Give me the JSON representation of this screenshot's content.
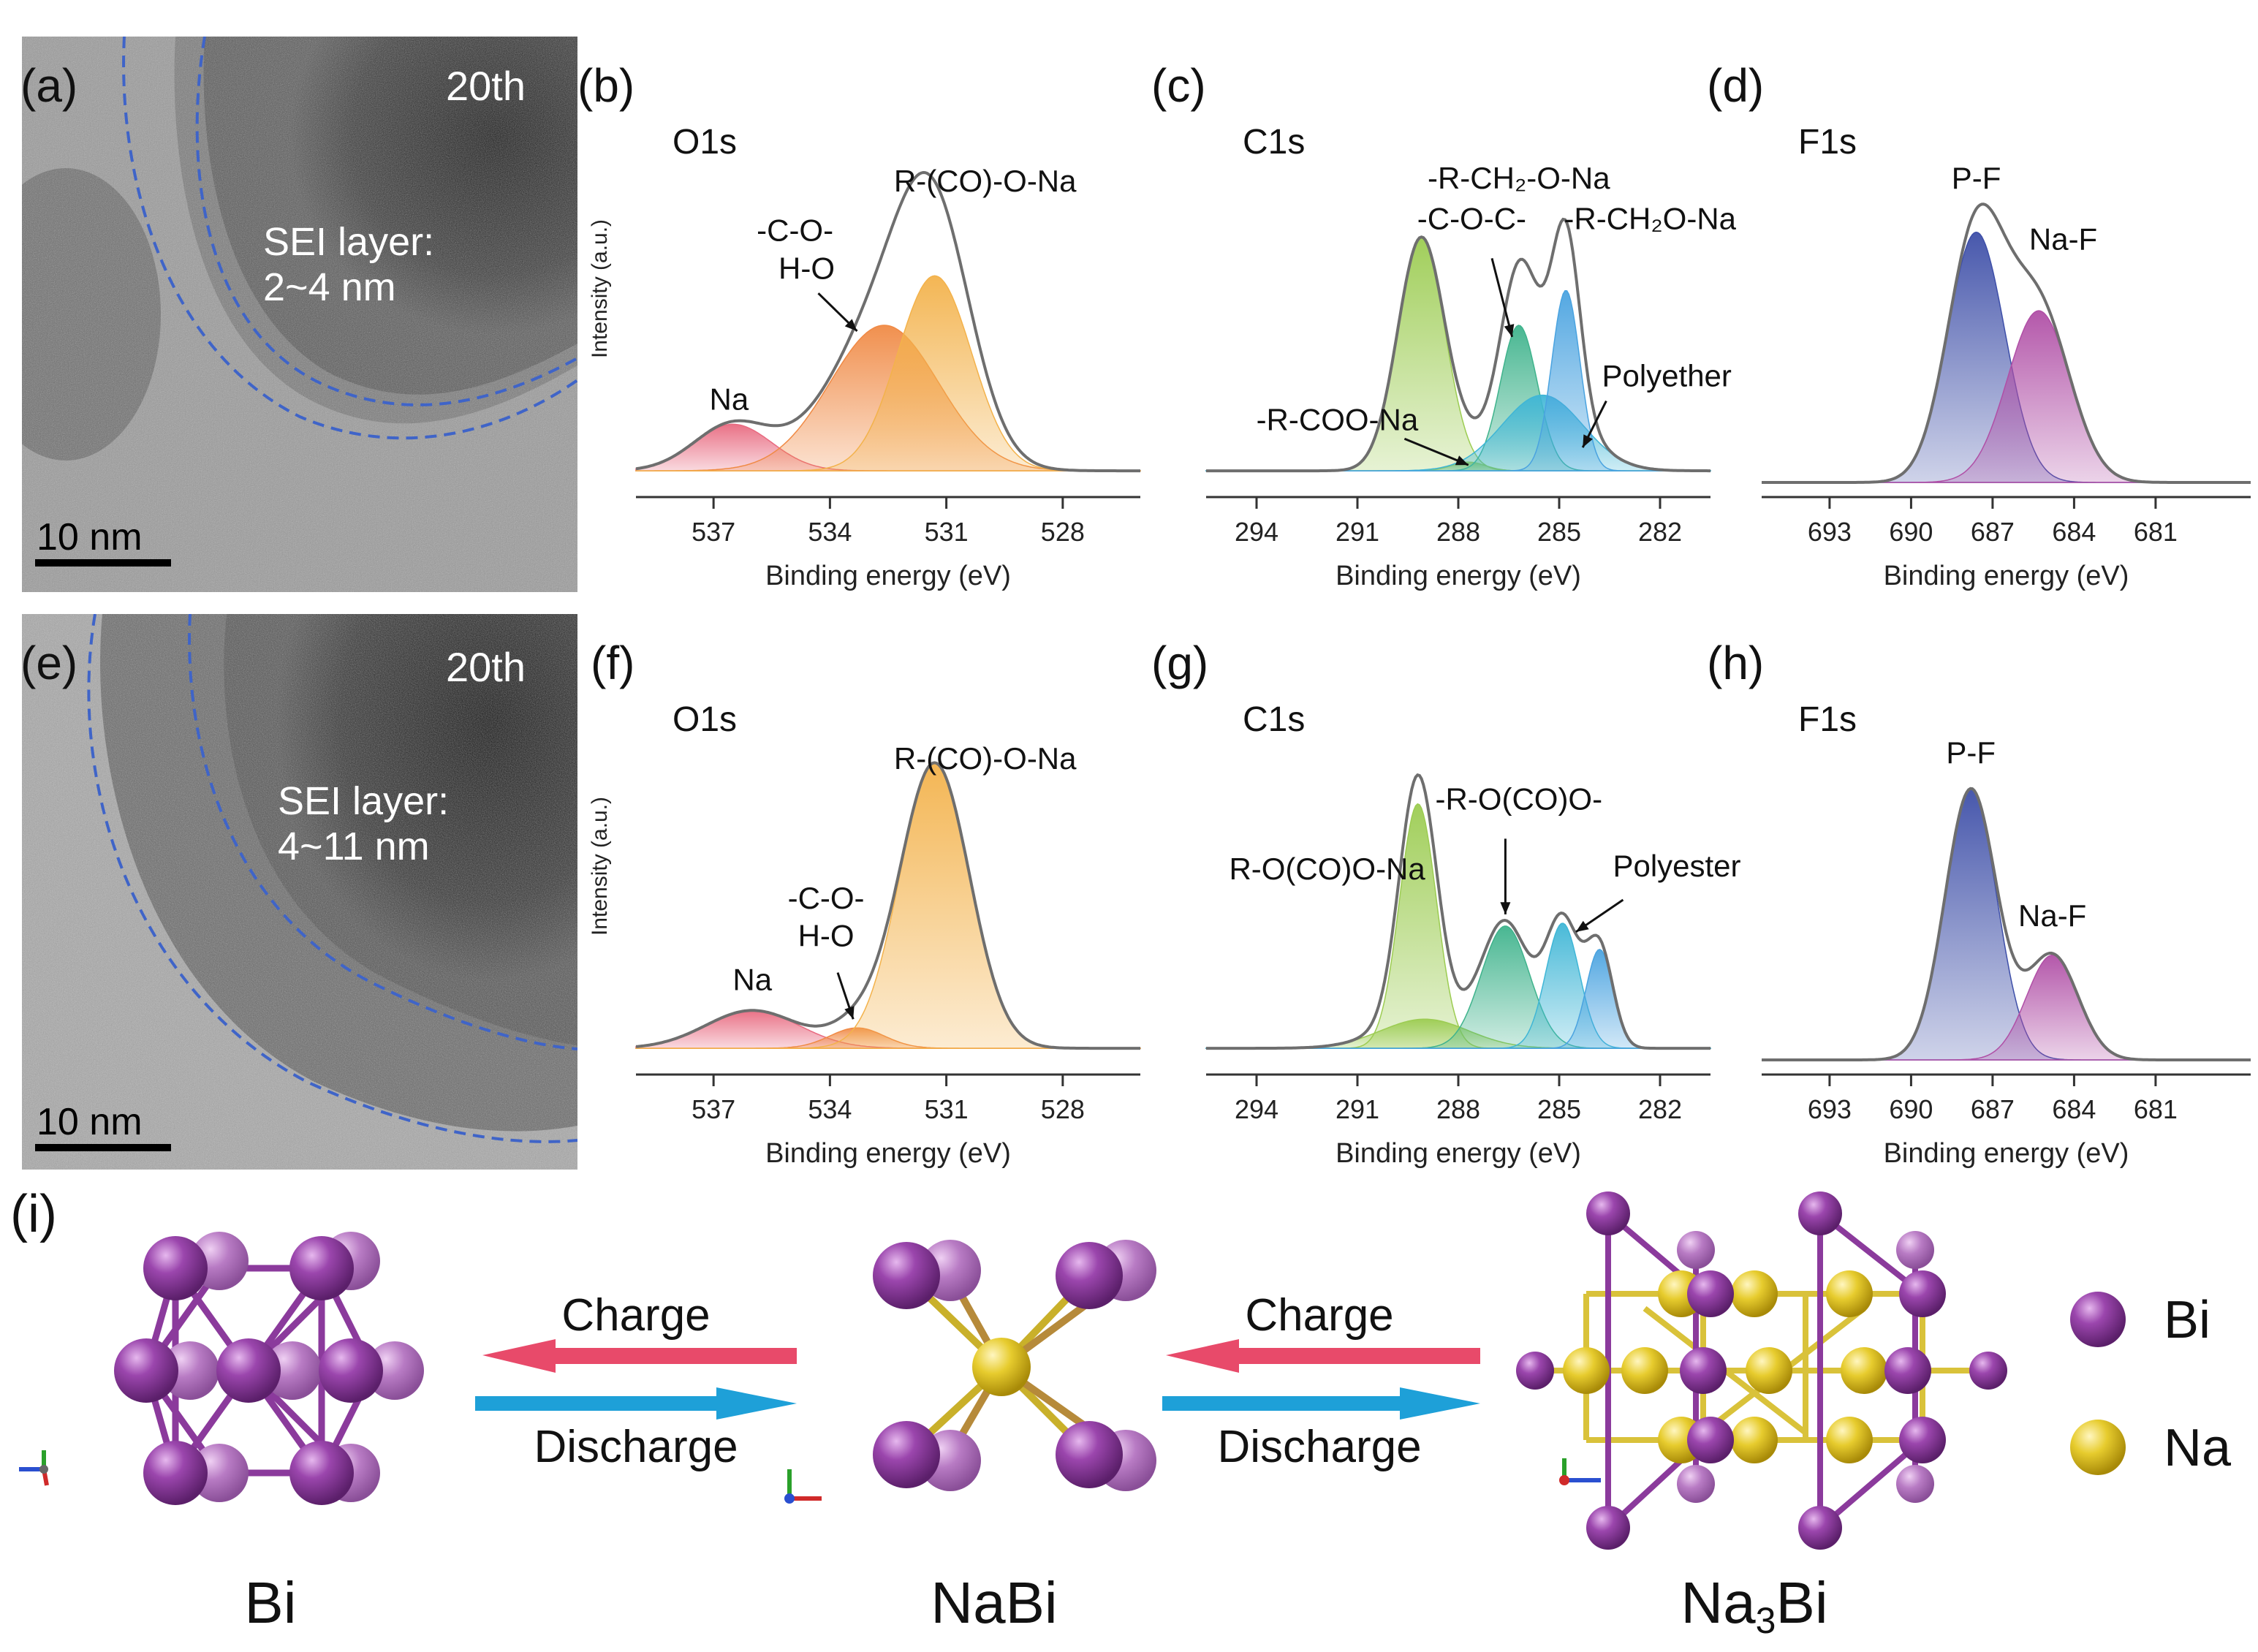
{
  "labels": {
    "a": "(a)",
    "b": "(b)",
    "c": "(c)",
    "d": "(d)",
    "e": "(e)",
    "f": "(f)",
    "g": "(g)",
    "h": "(h)",
    "i": "(i)"
  },
  "tem": [
    {
      "id": "a",
      "cycle": "20th",
      "sei_line1": "SEI layer:",
      "sei_line2": "2~4 nm",
      "scale": "10 nm"
    },
    {
      "id": "e",
      "cycle": "20th",
      "sei_line1": "SEI layer:",
      "sei_line2": "4~11 nm",
      "scale": "10 nm"
    }
  ],
  "colors": {
    "envelope": "#6e6e6e",
    "raw": "#b8b8b8",
    "red": "#e86a80",
    "orange": "#f08a45",
    "yellow": "#f3b24b",
    "lightgreen": "#9ccc52",
    "teal": "#3fb38c",
    "cyan": "#3fb6d6",
    "blue": "#4aa3e0",
    "navy": "#3e4fa8",
    "purple": "#b04fa6",
    "arrow_red": "#e84a6a",
    "arrow_blue": "#1ea0d8",
    "bi_atom": "#8b3a9c",
    "na_atom": "#e6c82a"
  },
  "chart_data": [
    {
      "id": "b",
      "type": "area",
      "title": "O1s",
      "ylabel": "Intensity (a.u.)",
      "xlabel": "Binding energy (eV)",
      "xlim": [
        539,
        526
      ],
      "ylim": [
        0,
        1.08
      ],
      "xticks": [
        537,
        534,
        531,
        528
      ],
      "baseline": 0.04,
      "series": [
        {
          "color_key": "red",
          "center": 536.5,
          "amp": 0.16,
          "sigma": 1.0
        },
        {
          "color_key": "orange",
          "center": 532.6,
          "amp": 0.5,
          "sigma": 1.4
        },
        {
          "color_key": "yellow",
          "center": 531.3,
          "amp": 0.67,
          "sigma": 0.95
        }
      ],
      "annotations": [
        {
          "text": "Na",
          "x": 536.6,
          "y": 0.25
        },
        {
          "text": "-C-O-",
          "x": 534.9,
          "y": 0.83
        },
        {
          "text": "H-O",
          "x": 534.6,
          "y": 0.7
        },
        {
          "text": "R-(CO)-O-Na",
          "x": 530.0,
          "y": 1.0
        }
      ],
      "arrows": [
        {
          "from": [
            534.3,
            0.65
          ],
          "to": [
            533.3,
            0.52
          ]
        }
      ]
    },
    {
      "id": "c",
      "type": "area",
      "title": "C1s",
      "ylabel": "",
      "xlabel": "Binding energy (eV)",
      "xlim": [
        295.5,
        280.5
      ],
      "ylim": [
        0,
        1.08
      ],
      "xticks": [
        294,
        291,
        288,
        285,
        282
      ],
      "baseline": 0.04,
      "series": [
        {
          "color_key": "lightgreen",
          "center": 289.1,
          "amp": 0.8,
          "sigma": 0.7
        },
        {
          "color_key": "lightgreen",
          "center": 287.7,
          "amp": 0.03,
          "sigma": 0.5
        },
        {
          "color_key": "teal",
          "center": 286.2,
          "amp": 0.5,
          "sigma": 0.55
        },
        {
          "color_key": "cyan",
          "center": 285.5,
          "amp": 0.26,
          "sigma": 1.2
        },
        {
          "color_key": "blue",
          "center": 284.8,
          "amp": 0.62,
          "sigma": 0.42
        }
      ],
      "annotations": [
        {
          "text": "-R-CH₂-O-Na",
          "x": 286.2,
          "y": 1.01
        },
        {
          "text": "-C-O-C-",
          "x": 287.6,
          "y": 0.87
        },
        {
          "text": "-R-CH₂O-Na",
          "x": 282.3,
          "y": 0.87
        },
        {
          "text": "Polyether",
          "x": 281.8,
          "y": 0.33
        },
        {
          "text": "-R-COO-Na",
          "x": 291.6,
          "y": 0.18
        }
      ],
      "arrows": [
        {
          "from": [
            287.0,
            0.77
          ],
          "to": [
            286.4,
            0.5
          ]
        },
        {
          "from": [
            283.6,
            0.28
          ],
          "to": [
            284.3,
            0.12
          ]
        },
        {
          "from": [
            289.6,
            0.15
          ],
          "to": [
            287.7,
            0.06
          ]
        }
      ]
    },
    {
      "id": "d",
      "type": "area",
      "title": "F1s",
      "ylabel": "",
      "xlabel": "Binding energy (eV)",
      "xlim": [
        695.5,
        677.5
      ],
      "ylim": [
        0,
        1.08
      ],
      "xticks": [
        693,
        690,
        687,
        684,
        681
      ],
      "baseline": 0.0,
      "series": [
        {
          "color_key": "navy",
          "center": 687.6,
          "amp": 0.86,
          "sigma": 1.05
        },
        {
          "color_key": "purple",
          "center": 685.3,
          "amp": 0.59,
          "sigma": 1.15
        }
      ],
      "annotations": [
        {
          "text": "P-F",
          "x": 687.6,
          "y": 1.01
        },
        {
          "text": "Na-F",
          "x": 684.4,
          "y": 0.8
        }
      ],
      "arrows": []
    },
    {
      "id": "f",
      "type": "area",
      "title": "O1s",
      "ylabel": "Intensity (a.u.)",
      "xlabel": "Binding energy (eV)",
      "xlim": [
        539,
        526
      ],
      "ylim": [
        0,
        1.08
      ],
      "xticks": [
        537,
        534,
        531,
        528
      ],
      "baseline": 0.04,
      "series": [
        {
          "color_key": "red",
          "center": 536.0,
          "amp": 0.13,
          "sigma": 1.2
        },
        {
          "color_key": "orange",
          "center": 533.3,
          "amp": 0.07,
          "sigma": 0.7
        },
        {
          "color_key": "yellow",
          "center": 531.3,
          "amp": 0.98,
          "sigma": 0.9
        }
      ],
      "annotations": [
        {
          "text": "Na",
          "x": 536.0,
          "y": 0.24
        },
        {
          "text": "-C-O-",
          "x": 534.1,
          "y": 0.52
        },
        {
          "text": "H-O",
          "x": 534.1,
          "y": 0.39
        },
        {
          "text": "R-(CO)-O-Na",
          "x": 530.0,
          "y": 1.0
        }
      ],
      "arrows": [
        {
          "from": [
            533.8,
            0.3
          ],
          "to": [
            533.4,
            0.14
          ]
        }
      ]
    },
    {
      "id": "g",
      "type": "area",
      "title": "C1s",
      "ylabel": "",
      "xlabel": "Binding energy (eV)",
      "xlim": [
        295.5,
        280.5
      ],
      "ylim": [
        0,
        1.08
      ],
      "xticks": [
        294,
        291,
        288,
        285,
        282
      ],
      "baseline": 0.04,
      "series": [
        {
          "color_key": "lightgreen",
          "center": 289.2,
          "amp": 0.84,
          "sigma": 0.55
        },
        {
          "color_key": "lightgreen",
          "center": 289.0,
          "amp": 0.1,
          "sigma": 1.3
        },
        {
          "color_key": "teal",
          "center": 286.6,
          "amp": 0.42,
          "sigma": 0.72
        },
        {
          "color_key": "cyan",
          "center": 284.9,
          "amp": 0.43,
          "sigma": 0.5
        },
        {
          "color_key": "blue",
          "center": 283.8,
          "amp": 0.34,
          "sigma": 0.4
        }
      ],
      "annotations": [
        {
          "text": "-R-O(CO)O-",
          "x": 286.2,
          "y": 0.86
        },
        {
          "text": "R-O(CO)O-Na",
          "x": 291.9,
          "y": 0.62
        },
        {
          "text": "Polyester",
          "x": 281.5,
          "y": 0.63
        }
      ],
      "arrows": [
        {
          "from": [
            286.6,
            0.76
          ],
          "to": [
            286.6,
            0.5
          ]
        },
        {
          "from": [
            283.1,
            0.55
          ],
          "to": [
            284.5,
            0.44
          ]
        }
      ]
    },
    {
      "id": "h",
      "type": "area",
      "title": "F1s",
      "ylabel": "",
      "xlabel": "Binding energy (eV)",
      "xlim": [
        695.5,
        677.5
      ],
      "ylim": [
        0,
        1.08
      ],
      "xticks": [
        693,
        690,
        687,
        684,
        681
      ],
      "baseline": 0.0,
      "series": [
        {
          "color_key": "navy",
          "center": 687.8,
          "amp": 0.93,
          "sigma": 0.95
        },
        {
          "color_key": "purple",
          "center": 684.8,
          "amp": 0.36,
          "sigma": 0.95
        }
      ],
      "annotations": [
        {
          "text": "P-F",
          "x": 687.8,
          "y": 1.02
        },
        {
          "text": "Na-F",
          "x": 684.8,
          "y": 0.46
        }
      ],
      "arrows": []
    }
  ],
  "scheme": {
    "arrow1": {
      "charge": "Charge",
      "discharge": "Discharge"
    },
    "arrow2": {
      "charge": "Charge",
      "discharge": "Discharge"
    },
    "names": {
      "bi": "Bi",
      "nabi": "NaBi",
      "na3bi_prefix": "Na",
      "na3bi_sub": "3",
      "na3bi_suffix": "Bi"
    },
    "legend": [
      {
        "label": "Bi",
        "color_key": "bi_atom"
      },
      {
        "label": "Na",
        "color_key": "na_atom"
      }
    ]
  }
}
